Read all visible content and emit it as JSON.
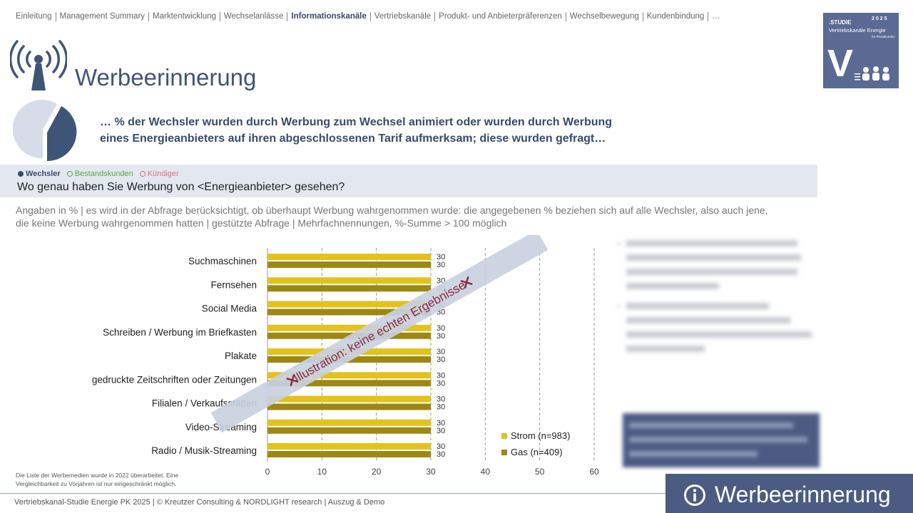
{
  "nav": {
    "items": [
      "Einleitung",
      "Management Summary",
      "Marktentwicklung",
      "Wechselanlässe",
      "Informationskanäle",
      "Vertriebskanäle",
      "Produkt- und Anbieterpräferenzen",
      "Wechselbewegung",
      "Kundenbindung",
      "…"
    ],
    "active": 4
  },
  "logo": {
    "label": ".STUDIE",
    "year": "2025",
    "line1": "Vertriebskanäle Energie",
    "line2": "für Privatkunden",
    "letter": "V"
  },
  "title": "Werbeerinnerung",
  "lead": [
    "… % der Wechsler wurden durch Werbung zum Wechsel animiert oder wurden durch Werbung",
    "eines Energieanbieters auf ihren abgeschlossenen Tarif aufmerksam; diese wurden gefragt…"
  ],
  "segments": [
    {
      "label": "Wechsler",
      "color": "#3b4a6b",
      "active": true
    },
    {
      "label": "Bestandskunden",
      "color": "#5aa54a",
      "active": false
    },
    {
      "label": "Kündiger",
      "color": "#d9707a",
      "active": false
    }
  ],
  "question": "Wo genau haben Sie Werbung von <Energieanbieter> gesehen?",
  "note": [
    "Angaben in % | es wird in der Abfrage berücksichtigt, ob überhaupt Werbung wahrgenommen wurde: die angegebenen % beziehen sich auf alle Wechsler, also auch jene,",
    "die keine Werbung wahrgenommen hatten | gestützte Abfrage | Mehrfachnennungen, %-Summe > 100 möglich"
  ],
  "chart_data": {
    "type": "bar",
    "orientation": "horizontal",
    "categories": [
      "Suchmaschinen",
      "Fernsehen",
      "Social Media",
      "Schreiben / Werbung im Briefkasten",
      "Plakate",
      "gedruckte Zeitschriften oder Zeitungen",
      "Filialen / Verkaufsstätten",
      "Video-Streaming",
      "Radio / Musik-Streaming"
    ],
    "series": [
      {
        "name": "Strom (n=983)",
        "color": "#e3c21b",
        "values": [
          30,
          30,
          30,
          30,
          30,
          30,
          30,
          30,
          30
        ]
      },
      {
        "name": "Gas (n=409)",
        "color": "#9d8912",
        "values": [
          30,
          30,
          30,
          30,
          30,
          30,
          30,
          30,
          30
        ]
      }
    ],
    "xlim": [
      0,
      60
    ],
    "xticks": [
      0,
      10,
      20,
      30,
      40,
      50,
      60
    ],
    "grid": true,
    "legend": "lower right"
  },
  "watermark": "Illustration: keine echten Ergebnisse",
  "footnote": "Die Liste der Werbemedien wurde in 2022 überarbeitet. Eine Vergleichbarkeit zu Vorjahren ist nur eingeschränkt möglich.",
  "footer": "Vertriebskanal-Studie Energie PK 2025 | © Kreutzer Consulting & NORDLIGHT research | Auszug & Demo",
  "badge": "Werbeerinnerung"
}
